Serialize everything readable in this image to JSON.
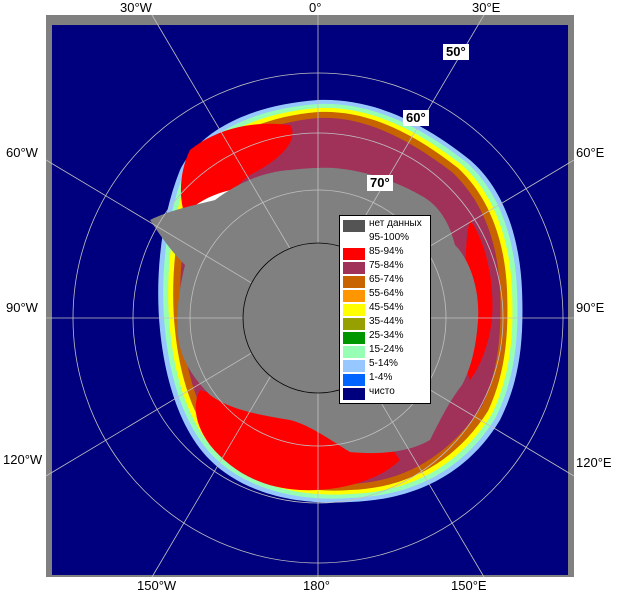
{
  "colors": {
    "frame": "#808080",
    "ocean": "#00007e",
    "land": "#808080",
    "grid": "#c0c0c0",
    "pole": "#808080"
  },
  "top_labels": [
    "30°W",
    "0°",
    "30°E"
  ],
  "bottom_labels": [
    "150°W",
    "180°",
    "150°E"
  ],
  "left_labels": [
    "60°W",
    "90°W",
    "120°W"
  ],
  "right_labels": [
    "60°E",
    "90°E",
    "120°E"
  ],
  "lat_labels": [
    "50°",
    "60°",
    "70°"
  ],
  "legend": [
    {
      "label": "нет данных",
      "color": "#545454"
    },
    {
      "label": "95-100%",
      "color": "#ffffff"
    },
    {
      "label": "85-94%",
      "color": "#ff0000"
    },
    {
      "label": "75-84%",
      "color": "#a0325a"
    },
    {
      "label": "65-74%",
      "color": "#c86400"
    },
    {
      "label": "55-64%",
      "color": "#ff9600"
    },
    {
      "label": "45-54%",
      "color": "#ffff00"
    },
    {
      "label": "35-44%",
      "color": "#96a000"
    },
    {
      "label": "25-34%",
      "color": "#009600"
    },
    {
      "label": "15-24%",
      "color": "#96ffb4"
    },
    {
      "label": "5-14%",
      "color": "#96c8ff"
    },
    {
      "label": "1-4%",
      "color": "#0064ff"
    },
    {
      "label": "чисто",
      "color": "#00007e"
    }
  ]
}
